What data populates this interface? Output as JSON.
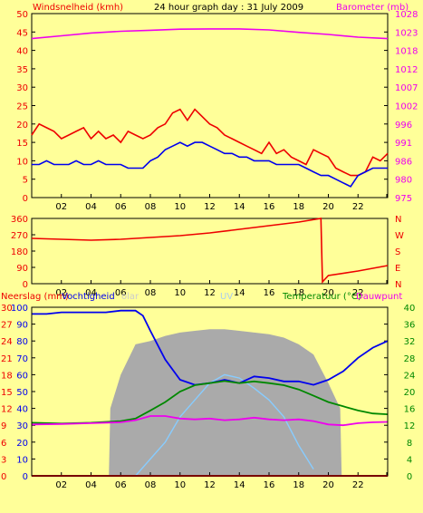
{
  "title": "24 hour graph day : 31 July 2009",
  "colors": {
    "background": "#ffff99",
    "wind": "#ee0000",
    "gust": "#ee0000",
    "barometer": "#ee00ee",
    "direction": "#ee0000",
    "humidity": "#0000ee",
    "temperature": "#008800",
    "dewpoint": "#ee00ee",
    "solar": "#aaaaaa",
    "uv": "#88ccff",
    "rain": "#ee0000"
  },
  "chart_data": [
    {
      "type": "line",
      "name": "wind-barometer",
      "left_label": "Windsnelheid (kmh)",
      "right_label": "Barometer (mb)",
      "x_ticks": [
        "02",
        "04",
        "06",
        "08",
        "10",
        "12",
        "14",
        "16",
        "18",
        "20",
        "22"
      ],
      "x_range": [
        0,
        24
      ],
      "y_left": {
        "ticks": [
          0,
          5,
          10,
          15,
          20,
          25,
          30,
          35,
          40,
          45,
          50
        ],
        "ylim": [
          0,
          50
        ]
      },
      "y_right": {
        "ticks": [
          975,
          980,
          986,
          991,
          996,
          1002,
          1007,
          1012,
          1018,
          1023,
          1028
        ],
        "ylim": [
          975,
          1028
        ]
      },
      "series": [
        {
          "key": "wind_gust",
          "color": "#ee0000",
          "x": [
            0,
            0.5,
            1,
            1.5,
            2,
            2.5,
            3,
            3.5,
            4,
            4.5,
            5,
            5.5,
            6,
            6.5,
            7,
            7.5,
            8,
            8.5,
            9,
            9.5,
            10,
            10.5,
            11,
            11.5,
            12,
            12.5,
            13,
            13.5,
            14,
            14.5,
            15,
            15.5,
            16,
            16.5,
            17,
            17.5,
            18,
            18.5,
            19,
            19.5,
            20,
            20.5,
            21,
            21.5,
            22,
            22.5,
            23,
            23.5,
            24
          ],
          "y": [
            17,
            20,
            19,
            18,
            16,
            17,
            18,
            19,
            16,
            18,
            16,
            17,
            15,
            18,
            17,
            16,
            17,
            19,
            20,
            23,
            24,
            21,
            24,
            22,
            20,
            19,
            17,
            16,
            15,
            14,
            13,
            12,
            15,
            12,
            13,
            11,
            10,
            9,
            13,
            12,
            11,
            8,
            7,
            6,
            6,
            7,
            11,
            10,
            12
          ]
        },
        {
          "key": "wind_avg",
          "color": "#0000ee",
          "x": [
            0,
            0.5,
            1,
            1.5,
            2,
            2.5,
            3,
            3.5,
            4,
            4.5,
            5,
            5.5,
            6,
            6.5,
            7,
            7.5,
            8,
            8.5,
            9,
            9.5,
            10,
            10.5,
            11,
            11.5,
            12,
            12.5,
            13,
            13.5,
            14,
            14.5,
            15,
            15.5,
            16,
            16.5,
            17,
            17.5,
            18,
            18.5,
            19,
            19.5,
            20,
            20.5,
            21,
            21.5,
            22,
            22.5,
            23,
            23.5,
            24
          ],
          "y": [
            9,
            9,
            10,
            9,
            9,
            9,
            10,
            9,
            9,
            10,
            9,
            9,
            9,
            8,
            8,
            8,
            10,
            11,
            13,
            14,
            15,
            14,
            15,
            15,
            14,
            13,
            12,
            12,
            11,
            11,
            10,
            10,
            10,
            9,
            9,
            9,
            9,
            8,
            7,
            6,
            6,
            5,
            4,
            3,
            6,
            7,
            8,
            8,
            8
          ]
        },
        {
          "key": "barometer",
          "color": "#ee00ee",
          "axis": "right",
          "x": [
            0,
            2,
            4,
            6,
            8,
            10,
            12,
            14,
            16,
            18,
            20,
            22,
            24
          ],
          "y": [
            1020.8,
            1021.6,
            1022.4,
            1022.9,
            1023.2,
            1023.5,
            1023.6,
            1023.6,
            1023.3,
            1022.6,
            1022,
            1021.2,
            1020.8
          ]
        }
      ]
    },
    {
      "type": "line",
      "name": "wind-direction",
      "left_ticks": [
        0,
        90,
        180,
        270,
        360
      ],
      "right_labels": [
        "N",
        "E",
        "S",
        "W",
        "N"
      ],
      "ylim": [
        0,
        360
      ],
      "x_ticks": [
        "02",
        "04",
        "06",
        "08",
        "10",
        "12",
        "14",
        "16",
        "18",
        "20",
        "22"
      ],
      "series": [
        {
          "key": "direction",
          "color": "#ee0000",
          "x": [
            0,
            2,
            4,
            6,
            8,
            10,
            12,
            14,
            16,
            18,
            19.5,
            19.6,
            20,
            22,
            24
          ],
          "y": [
            250,
            245,
            240,
            245,
            255,
            265,
            280,
            300,
            320,
            340,
            360,
            10,
            45,
            70,
            100
          ]
        }
      ]
    },
    {
      "type": "line",
      "name": "humidity-temperature",
      "left_label": "Neerslag (mm)",
      "left_label2": "Vochtigheid",
      "solar_label": "olar",
      "uv_label": "UV",
      "right_label": "Temperatuur (°C)",
      "right_label2": "Dauwpunt",
      "x_ticks": [
        "02",
        "04",
        "06",
        "08",
        "10",
        "12",
        "14",
        "16",
        "18",
        "20",
        "22"
      ],
      "left_outer_ticks": [
        0,
        3,
        6,
        9,
        12,
        15,
        18,
        21,
        24,
        27,
        30
      ],
      "left_inner_ticks": [
        0,
        10,
        20,
        30,
        40,
        50,
        60,
        70,
        80,
        90,
        100
      ],
      "right_ticks": [
        0,
        4,
        8,
        12,
        16,
        20,
        24,
        28,
        32,
        36,
        40
      ],
      "series": [
        {
          "key": "humidity",
          "color": "#0000ee",
          "x": [
            0,
            1,
            2,
            3,
            4,
            5,
            6,
            7,
            7.5,
            8,
            9,
            10,
            11,
            12,
            13,
            14,
            15,
            16,
            17,
            18,
            19,
            20,
            21,
            22,
            23,
            24
          ],
          "y": [
            96,
            96,
            97,
            97,
            97,
            97,
            98,
            98,
            95,
            86,
            69,
            57,
            54,
            55,
            57,
            55,
            59,
            58,
            56,
            56,
            54,
            57,
            62,
            70,
            76,
            80
          ]
        },
        {
          "key": "temperature",
          "color": "#008800",
          "x": [
            0,
            2,
            4,
            6,
            7,
            8,
            9,
            10,
            11,
            12,
            13,
            14,
            15,
            16,
            17,
            18,
            19,
            20,
            21,
            22,
            23,
            24
          ],
          "y": [
            12.6,
            12.4,
            12.6,
            13,
            13.6,
            15.5,
            17.5,
            20,
            21.5,
            22,
            22.5,
            22,
            22.4,
            22,
            21.5,
            20.5,
            19,
            17.5,
            16.5,
            15.5,
            14.8,
            14.6
          ]
        },
        {
          "key": "dewpoint",
          "color": "#ee00ee",
          "x": [
            0,
            2,
            4,
            6,
            7,
            8,
            9,
            10,
            11,
            12,
            13,
            14,
            15,
            16,
            17,
            18,
            19,
            20,
            21,
            22,
            23,
            24
          ],
          "y": [
            12.2,
            12.3,
            12.5,
            12.7,
            13.2,
            14.2,
            14.2,
            13.6,
            13.4,
            13.6,
            13.2,
            13.4,
            13.8,
            13.4,
            13.2,
            13.4,
            13,
            12.2,
            12,
            12.5,
            12.7,
            12.8
          ]
        },
        {
          "key": "solar",
          "color": "#aaaaaa",
          "x": [
            0,
            5.2,
            5.3,
            6,
            7,
            8,
            9,
            10,
            11,
            12,
            13,
            14,
            15,
            16,
            17,
            18,
            19,
            20,
            20.8,
            20.9,
            24
          ],
          "y": [
            0,
            0,
            40,
            60,
            78,
            80,
            83,
            85,
            86,
            87,
            87,
            86,
            85,
            84,
            82,
            78,
            72,
            55,
            40,
            0,
            0
          ]
        },
        {
          "key": "uv",
          "color": "#88ccff",
          "x": [
            7,
            8,
            9,
            10,
            11,
            12,
            13,
            14,
            15,
            16,
            17,
            18,
            19
          ],
          "y": [
            0,
            10,
            20,
            35,
            45,
            55,
            60,
            58,
            52,
            45,
            35,
            18,
            4
          ]
        },
        {
          "key": "rain",
          "color": "#ee0000",
          "x": [
            0,
            24
          ],
          "y": [
            0,
            0
          ]
        }
      ]
    }
  ]
}
